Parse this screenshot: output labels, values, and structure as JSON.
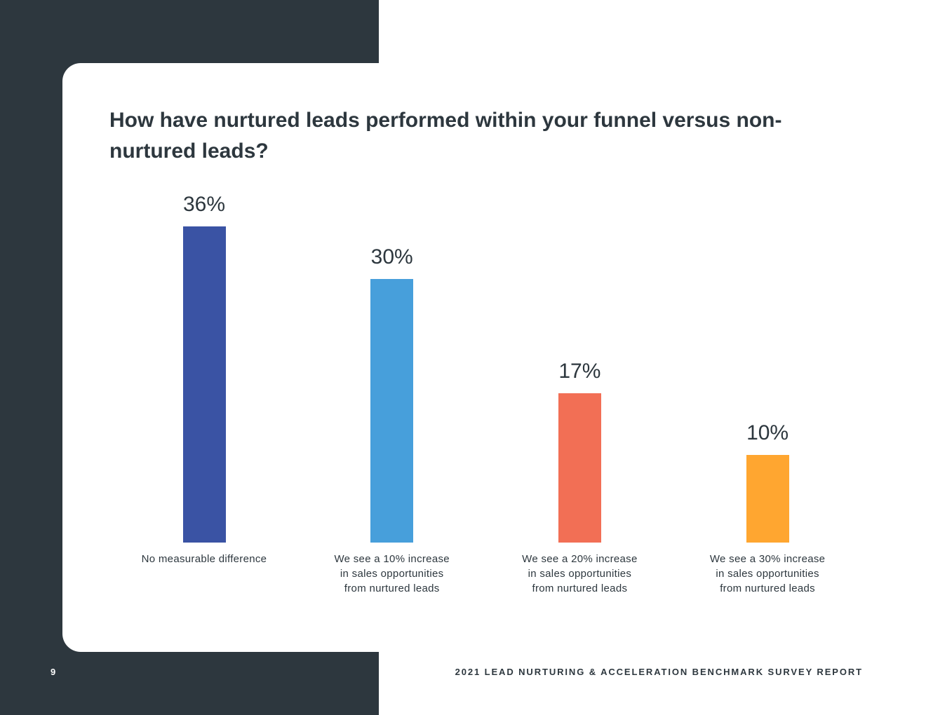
{
  "chart_data": {
    "type": "bar",
    "title": "How have nurtured leads performed within your funnel versus non-nurtured leads?",
    "categories": [
      "No measurable difference",
      "We see a 10% increase in sales opportunities from nurtured leads",
      "We see a 20% increase in sales opportunities from nurtured leads",
      "We see a 30% increase in sales opportunities from nurtured leads"
    ],
    "values": [
      36,
      30,
      17,
      10
    ],
    "value_labels": [
      "36%",
      "30%",
      "17%",
      "10%"
    ],
    "colors": [
      "#3a53a4",
      "#479fdb",
      "#f26f55",
      "#ffa630"
    ]
  },
  "footer": {
    "page_number": "9",
    "report_title": "2021 LEAD NURTURING & ACCELERATION BENCHMARK SURVEY REPORT"
  }
}
